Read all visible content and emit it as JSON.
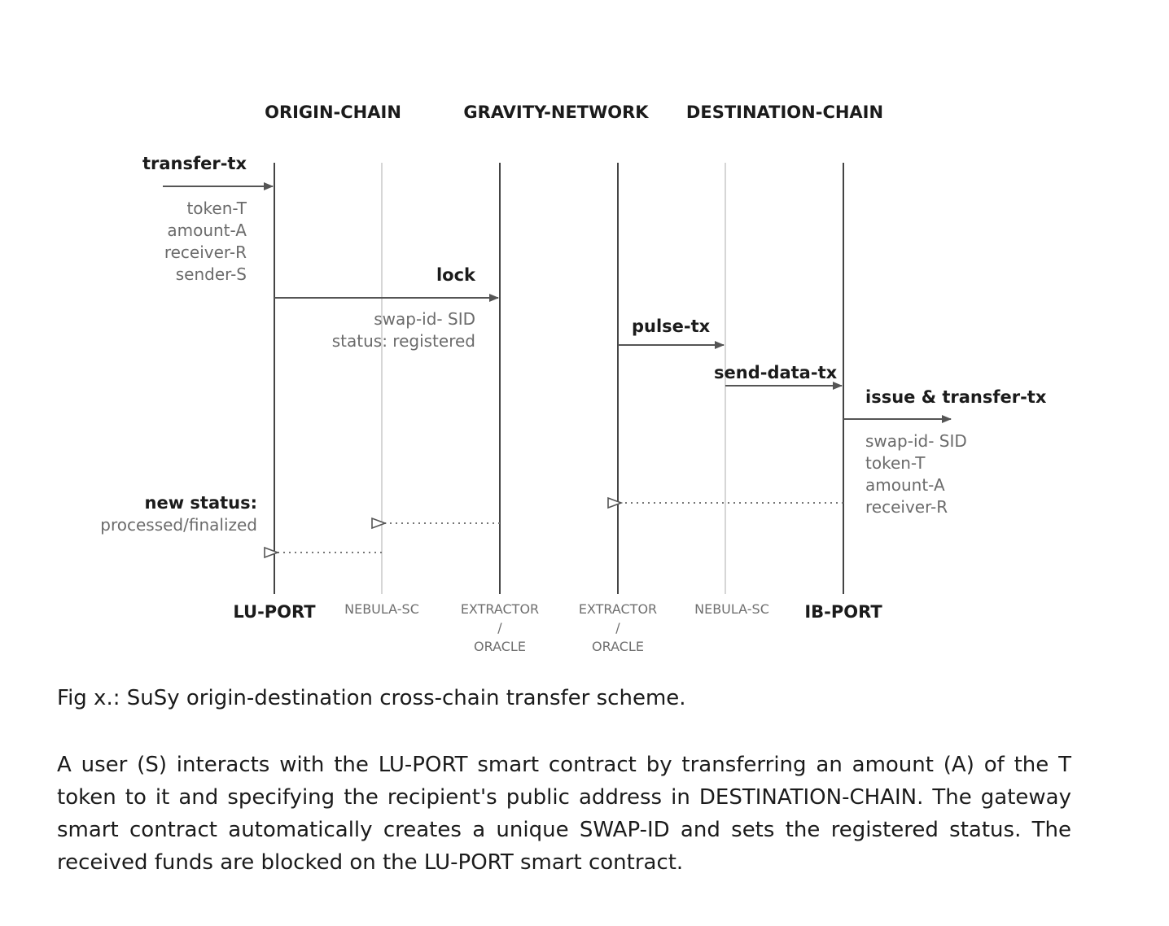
{
  "headers": {
    "origin_chain": "ORIGIN-CHAIN",
    "gravity_network": "GRAVITY-NETWORK",
    "destination_chain": "DESTINATION-CHAIN"
  },
  "lanes": {
    "lu_port": "LU-PORT",
    "nebula_sc_origin": "NEBULA-SC",
    "extractor_origin": {
      "line1": "EXTRACTOR",
      "line2": "/",
      "line3": "ORACLE"
    },
    "extractor_dest": {
      "line1": "EXTRACTOR",
      "line2": "/",
      "line3": "ORACLE"
    },
    "nebula_sc_dest": "NEBULA-SC",
    "ib_port": "IB-PORT"
  },
  "messages": {
    "transfer_tx": {
      "label": "transfer-tx",
      "params": [
        "token-T",
        "amount-A",
        "receiver-R",
        "sender-S"
      ]
    },
    "lock": {
      "label": "lock",
      "params": [
        "swap-id- SID",
        "status: registered"
      ]
    },
    "pulse_tx": {
      "label": "pulse-tx"
    },
    "send_data_tx": {
      "label": "send-data-tx"
    },
    "issue_transfer_tx": {
      "label": "issue & transfer-tx",
      "params": [
        "swap-id- SID",
        "token-T",
        "amount-A",
        "receiver-R"
      ]
    },
    "new_status": {
      "label": "new status:",
      "value": "processed/finalized"
    }
  },
  "caption": "Fig x.: SuSy origin-destination cross-chain transfer scheme.",
  "paragraph": "A user (S) interacts with the LU-PORT smart contract by transferring an amount (A) of the T token to it and specifying the recipient's public address in DESTINATION-CHAIN. The gateway smart contract automatically creates a unique SWAP-ID and sets the registered status. The received funds are blocked on the LU-PORT smart contract."
}
